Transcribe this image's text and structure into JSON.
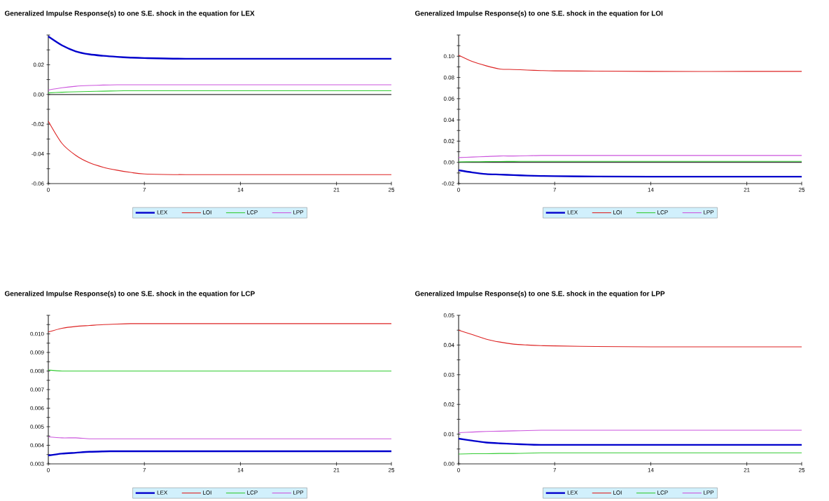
{
  "chart_data": [
    {
      "type": "line",
      "title": "Generalized Impulse Response(s) to one S.E. shock in the equation for LEX",
      "x": [
        0,
        1,
        2,
        3,
        4,
        5,
        6,
        7,
        10,
        14,
        21,
        25
      ],
      "xlim": [
        0,
        25
      ],
      "xticks": [
        0,
        7,
        14,
        21,
        25
      ],
      "ylim": [
        -0.06,
        0.04
      ],
      "yticks": [
        {
          "value": -0.06,
          "label": "-0.06"
        },
        {
          "value": -0.05,
          "label": null
        },
        {
          "value": -0.04,
          "label": "-0.04"
        },
        {
          "value": -0.03,
          "label": null
        },
        {
          "value": -0.02,
          "label": "-0.02"
        },
        {
          "value": -0.01,
          "label": null
        },
        {
          "value": 0,
          "label": "0.00"
        },
        {
          "value": 0.01,
          "label": null
        },
        {
          "value": 0.02,
          "label": "0.02"
        },
        {
          "value": 0.03,
          "label": null
        },
        {
          "value": 0.04,
          "label": null
        }
      ],
      "grid": false,
      "legend": "bottom",
      "marker": "none",
      "line_style": "solid",
      "ref_lines": [
        {
          "axis": "y",
          "value": 0,
          "color": "#333333"
        }
      ],
      "series": [
        {
          "name": "LEX",
          "color": "#0000cc",
          "values": [
            0.039,
            0.033,
            0.029,
            0.027,
            0.026,
            0.0253,
            0.0248,
            0.0245,
            0.024,
            0.024,
            0.024,
            0.024
          ]
        },
        {
          "name": "LOI",
          "color": "#dd2222",
          "values": [
            -0.018,
            -0.033,
            -0.041,
            -0.046,
            -0.049,
            -0.051,
            -0.0525,
            -0.0535,
            -0.054,
            -0.054,
            -0.054,
            -0.054
          ]
        },
        {
          "name": "LCP",
          "color": "#33cc33",
          "values": [
            0.001,
            0.0015,
            0.0018,
            0.002,
            0.0022,
            0.0024,
            0.0025,
            0.0025,
            0.0025,
            0.0025,
            0.0025,
            0.0025
          ]
        },
        {
          "name": "LPP",
          "color": "#cc55dd",
          "values": [
            0.003,
            0.0045,
            0.0055,
            0.006,
            0.0063,
            0.0065,
            0.0065,
            0.0065,
            0.0065,
            0.0065,
            0.0065,
            0.0065
          ]
        }
      ]
    },
    {
      "type": "line",
      "title": "Generalized Impulse Response(s) to one S.E. shock in the equation for LOI",
      "x": [
        0,
        1,
        2,
        3,
        4,
        5,
        6,
        7,
        10,
        14,
        21,
        25
      ],
      "xlim": [
        0,
        25
      ],
      "xticks": [
        0,
        7,
        14,
        21,
        25
      ],
      "ylim": [
        -0.02,
        0.12
      ],
      "yticks": [
        {
          "value": -0.02,
          "label": "-0.02"
        },
        {
          "value": -0.01,
          "label": null
        },
        {
          "value": 0,
          "label": "0.00"
        },
        {
          "value": 0.01,
          "label": null
        },
        {
          "value": 0.02,
          "label": "0.02"
        },
        {
          "value": 0.03,
          "label": null
        },
        {
          "value": 0.04,
          "label": "0.04"
        },
        {
          "value": 0.05,
          "label": null
        },
        {
          "value": 0.06,
          "label": "0.06"
        },
        {
          "value": 0.07,
          "label": null
        },
        {
          "value": 0.08,
          "label": "0.08"
        },
        {
          "value": 0.09,
          "label": null
        },
        {
          "value": 0.1,
          "label": "0.10"
        },
        {
          "value": 0.11,
          "label": null
        },
        {
          "value": 0.12,
          "label": null
        }
      ],
      "grid": false,
      "legend": "bottom",
      "marker": "none",
      "line_style": "solid",
      "ref_lines": [
        {
          "axis": "y",
          "value": 0,
          "color": "#333333"
        }
      ],
      "series": [
        {
          "name": "LEX",
          "color": "#0000cc",
          "values": [
            -0.0075,
            -0.0095,
            -0.011,
            -0.0115,
            -0.012,
            -0.0125,
            -0.0128,
            -0.013,
            -0.0133,
            -0.0135,
            -0.0135,
            -0.0135
          ]
        },
        {
          "name": "LOI",
          "color": "#dd2222",
          "values": [
            0.101,
            0.095,
            0.091,
            0.088,
            0.0875,
            0.087,
            0.0865,
            0.0862,
            0.086,
            0.0857,
            0.0857,
            0.0857
          ]
        },
        {
          "name": "LCP",
          "color": "#33cc33",
          "values": [
            0.0005,
            0.0006,
            0.0007,
            0.0008,
            0.0009,
            0.001,
            0.001,
            0.001,
            0.001,
            0.001,
            0.001,
            0.001
          ]
        },
        {
          "name": "LPP",
          "color": "#cc55dd",
          "values": [
            0.0045,
            0.005,
            0.0055,
            0.006,
            0.006,
            0.0062,
            0.0065,
            0.0065,
            0.0065,
            0.0065,
            0.0065,
            0.0065
          ]
        }
      ]
    },
    {
      "type": "line",
      "title": "Generalized Impulse Response(s) to one S.E. shock in the equation for LCP",
      "x": [
        0,
        1,
        2,
        3,
        4,
        5,
        6,
        7,
        10,
        14,
        21,
        25
      ],
      "xlim": [
        0,
        25
      ],
      "xticks": [
        0,
        7,
        14,
        21,
        25
      ],
      "ylim": [
        0.003,
        0.011
      ],
      "yticks": [
        {
          "value": 0.003,
          "label": "0.003"
        },
        {
          "value": 0.0035,
          "label": null
        },
        {
          "value": 0.004,
          "label": "0.004"
        },
        {
          "value": 0.0045,
          "label": null
        },
        {
          "value": 0.005,
          "label": "0.005"
        },
        {
          "value": 0.0055,
          "label": null
        },
        {
          "value": 0.006,
          "label": "0.006"
        },
        {
          "value": 0.0065,
          "label": null
        },
        {
          "value": 0.007,
          "label": "0.007"
        },
        {
          "value": 0.0075,
          "label": null
        },
        {
          "value": 0.008,
          "label": "0.008"
        },
        {
          "value": 0.0085,
          "label": null
        },
        {
          "value": 0.009,
          "label": "0.009"
        },
        {
          "value": 0.0095,
          "label": null
        },
        {
          "value": 0.01,
          "label": "0.010"
        },
        {
          "value": 0.0105,
          "label": null
        },
        {
          "value": 0.011,
          "label": null
        }
      ],
      "grid": false,
      "legend": "bottom",
      "marker": "none",
      "line_style": "solid",
      "series": [
        {
          "name": "LEX",
          "color": "#0000cc",
          "values": [
            0.00345,
            0.00355,
            0.0036,
            0.00365,
            0.00367,
            0.00368,
            0.00368,
            0.00368,
            0.00368,
            0.00368,
            0.00368,
            0.00368
          ]
        },
        {
          "name": "LOI",
          "color": "#dd2222",
          "values": [
            0.0101,
            0.0103,
            0.0104,
            0.01045,
            0.0105,
            0.01053,
            0.01055,
            0.01055,
            0.01055,
            0.01055,
            0.01055,
            0.01055
          ]
        },
        {
          "name": "LCP",
          "color": "#33cc33",
          "values": [
            0.00805,
            0.008,
            0.008,
            0.008,
            0.008,
            0.008,
            0.008,
            0.008,
            0.008,
            0.008,
            0.008,
            0.008
          ]
        },
        {
          "name": "LPP",
          "color": "#cc55dd",
          "values": [
            0.00445,
            0.0044,
            0.0044,
            0.00435,
            0.00435,
            0.00435,
            0.00435,
            0.00435,
            0.00435,
            0.00435,
            0.00435,
            0.00435
          ]
        }
      ]
    },
    {
      "type": "line",
      "title": "Generalized Impulse Response(s) to one S.E. shock in the equation for LPP",
      "x": [
        0,
        1,
        2,
        3,
        4,
        5,
        6,
        7,
        10,
        14,
        21,
        25
      ],
      "xlim": [
        0,
        25
      ],
      "xticks": [
        0,
        7,
        14,
        21,
        25
      ],
      "ylim": [
        0,
        0.05
      ],
      "yticks": [
        {
          "value": 0,
          "label": "0.00"
        },
        {
          "value": 0.005,
          "label": null
        },
        {
          "value": 0.01,
          "label": "0.01"
        },
        {
          "value": 0.015,
          "label": null
        },
        {
          "value": 0.02,
          "label": "0.02"
        },
        {
          "value": 0.025,
          "label": null
        },
        {
          "value": 0.03,
          "label": "0.03"
        },
        {
          "value": 0.035,
          "label": null
        },
        {
          "value": 0.04,
          "label": "0.04"
        },
        {
          "value": 0.045,
          "label": null
        },
        {
          "value": 0.05,
          "label": "0.05"
        }
      ],
      "grid": false,
      "legend": "bottom",
      "marker": "none",
      "line_style": "solid",
      "series": [
        {
          "name": "LEX",
          "color": "#0000cc",
          "values": [
            0.0085,
            0.0078,
            0.0072,
            0.0069,
            0.0067,
            0.0065,
            0.0064,
            0.0064,
            0.0064,
            0.0064,
            0.0064,
            0.0064
          ]
        },
        {
          "name": "LOI",
          "color": "#dd2222",
          "values": [
            0.045,
            0.0435,
            0.042,
            0.041,
            0.0403,
            0.04,
            0.0398,
            0.0397,
            0.0395,
            0.0394,
            0.0394,
            0.0394
          ]
        },
        {
          "name": "LCP",
          "color": "#33cc33",
          "values": [
            0.0033,
            0.0034,
            0.0034,
            0.0035,
            0.0035,
            0.0036,
            0.0037,
            0.0037,
            0.0037,
            0.0037,
            0.0037,
            0.0037
          ]
        },
        {
          "name": "LPP",
          "color": "#cc55dd",
          "values": [
            0.0105,
            0.0107,
            0.0109,
            0.011,
            0.0111,
            0.0112,
            0.0113,
            0.0113,
            0.0113,
            0.0113,
            0.0113,
            0.0113
          ]
        }
      ]
    }
  ]
}
